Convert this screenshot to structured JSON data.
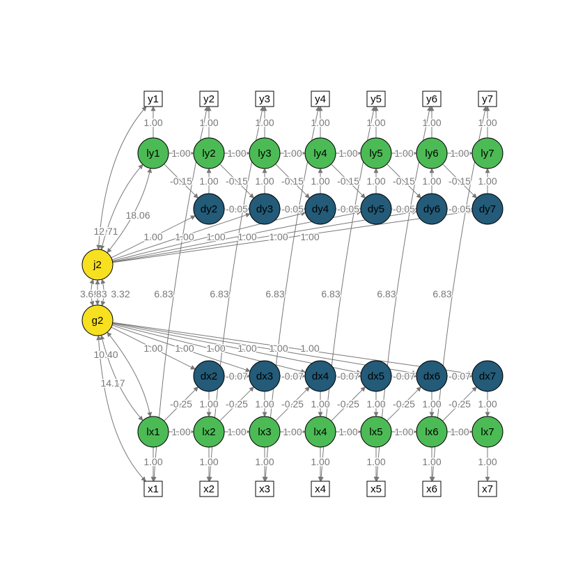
{
  "colors": {
    "latent_l": "#4cbb55",
    "latent_d": "#235b78",
    "latent_top": "#f7e020",
    "edge": "#777777",
    "node_text": "#000000"
  },
  "observed_y": [
    "y1",
    "y2",
    "y3",
    "y4",
    "y5",
    "y6",
    "y7"
  ],
  "latent_ly": [
    "ly1",
    "ly2",
    "ly3",
    "ly4",
    "ly5",
    "ly6",
    "ly7"
  ],
  "latent_dy": [
    "dy2",
    "dy3",
    "dy4",
    "dy5",
    "dy6",
    "dy7"
  ],
  "latent_top": [
    "j2",
    "g2"
  ],
  "latent_dx": [
    "dx2",
    "dx3",
    "dx4",
    "dx5",
    "dx6",
    "dx7"
  ],
  "latent_lx": [
    "lx1",
    "lx2",
    "lx3",
    "lx4",
    "lx5",
    "lx6",
    "lx7"
  ],
  "observed_x": [
    "x1",
    "x2",
    "x3",
    "x4",
    "x5",
    "x6",
    "x7"
  ],
  "estimates": {
    "loading": "1.00",
    "ar_y": "-0.15",
    "ar_x": "-0.25",
    "dy_ar": "-0.05",
    "dx_ar": "-0.07",
    "residual_cov": "6.83",
    "jg_left": "3.88",
    "jg_mid": "6.83",
    "jg_right": "3.32",
    "j2_ly1_a": "12.71",
    "j2_ly1_b": "18.06",
    "g2_lx1_a": "10.40",
    "g2_lx1_b": "14.17"
  }
}
